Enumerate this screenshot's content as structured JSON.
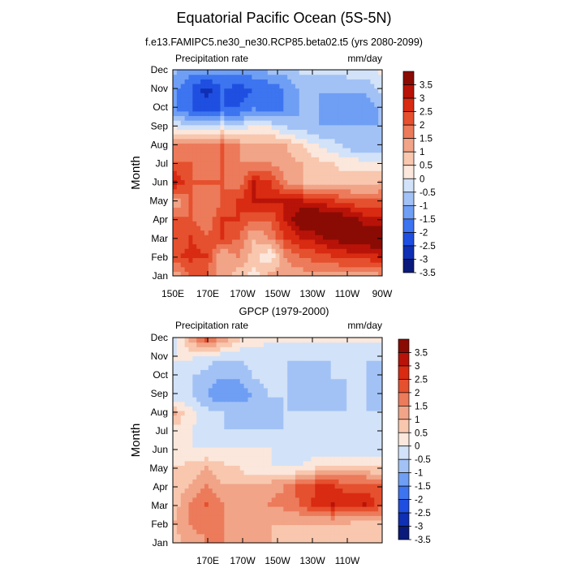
{
  "title": "Equatorial Pacific Ocean (5S-5N)",
  "palette": [
    "#0a1a7a",
    "#0f2fb4",
    "#1f4fe0",
    "#3d74f0",
    "#6f9ff4",
    "#a2c2f6",
    "#d2e2f8",
    "#fbe7dc",
    "#f8c7ae",
    "#f1a487",
    "#ec7b5b",
    "#e5502e",
    "#d92a12",
    "#b81308",
    "#8a0b04"
  ],
  "chart_data": [
    {
      "type": "heatmap",
      "subtitle": "f.e13.FAMIPC5.ne30_ne30.RCP85.beta02.t5 (yrs 2080-2099)",
      "left_label": "Precipitation rate",
      "right_label": "mm/day",
      "ylabel": "Month",
      "months": [
        "Jan",
        "Feb",
        "Mar",
        "Apr",
        "May",
        "Jun",
        "Jul",
        "Aug",
        "Sep",
        "Oct",
        "Nov",
        "Dec"
      ],
      "x_tick_labels": [
        "150E",
        "170E",
        "170W",
        "150W",
        "130W",
        "110W",
        "90W"
      ],
      "colorbar_labels": [
        "3.5",
        "3",
        "2.5",
        "2",
        "1.5",
        "1",
        "0.5",
        "0",
        "-0.5",
        "-1",
        "-1.5",
        "-2",
        "-2.5",
        "-3",
        "-3.5"
      ],
      "levels": [
        -3.5,
        -3,
        -2.5,
        -2,
        -1.5,
        -1,
        -0.5,
        0,
        0.5,
        1,
        1.5,
        2,
        2.5,
        3,
        3.5
      ],
      "grid": [
        [
          0.8,
          1.5,
          1.5,
          0.8,
          0.3,
          -0.2,
          0.5,
          0.8,
          0.8,
          0.9,
          0.9,
          0.9,
          0.9,
          1.0
        ],
        [
          1.8,
          2.2,
          2.0,
          0.5,
          1.0,
          0.3,
          -0.4,
          1.0,
          1.5,
          1.8,
          2.0,
          2.2,
          2.2,
          2.5
        ],
        [
          1.5,
          2.0,
          1.5,
          2.0,
          1.5,
          0.5,
          1.0,
          2.0,
          2.5,
          2.8,
          3.2,
          3.5,
          3.5,
          3.8
        ],
        [
          1.5,
          1.5,
          1.0,
          2.0,
          2.0,
          1.5,
          1.5,
          2.5,
          3.5,
          3.8,
          3.8,
          3.2,
          2.8,
          2.5
        ],
        [
          0.5,
          1.5,
          1.0,
          1.5,
          2.0,
          2.5,
          2.5,
          2.5,
          2.5,
          2.2,
          2.0,
          1.8,
          1.5,
          1.5
        ],
        [
          2.5,
          1.5,
          1.5,
          1.5,
          1.0,
          2.5,
          2.0,
          1.0,
          0.5,
          0.3,
          0.2,
          0.2,
          0.3,
          0.5
        ],
        [
          1.5,
          1.5,
          1.0,
          1.5,
          1.0,
          1.0,
          1.0,
          0.8,
          0.5,
          0.2,
          0.0,
          -0.2,
          -0.2,
          -0.3
        ],
        [
          1.0,
          1.2,
          1.0,
          1.5,
          1.0,
          0.5,
          0.8,
          0.5,
          0.0,
          -0.5,
          -0.8,
          -1.2,
          -1.5,
          -1.5
        ],
        [
          -0.5,
          -0.8,
          -1.0,
          -0.5,
          -0.8,
          -0.3,
          -0.5,
          -1.0,
          -1.2,
          -1.5,
          -1.5,
          -1.5,
          -1.5,
          -1.5
        ],
        [
          -2.0,
          -2.5,
          -2.8,
          -2.5,
          -2.5,
          -2.0,
          -2.5,
          -2.0,
          -1.5,
          -1.5,
          -1.8,
          -1.8,
          -1.8,
          -1.5
        ],
        [
          -2.0,
          -2.5,
          -3.2,
          -2.5,
          -2.8,
          -2.5,
          -2.5,
          -2.0,
          -1.5,
          -1.5,
          -1.5,
          -1.5,
          -1.5,
          -1.0
        ],
        [
          -1.5,
          -2.0,
          -2.0,
          -2.0,
          -2.0,
          -1.8,
          -1.5,
          -1.5,
          -1.0,
          -1.0,
          -1.0,
          -0.8,
          -0.8,
          -0.5
        ]
      ]
    },
    {
      "type": "heatmap",
      "subtitle": "GPCP (1979-2000)",
      "left_label": "Precipitation rate",
      "right_label": "mm/day",
      "ylabel": "Month",
      "months": [
        "Jan",
        "Feb",
        "Mar",
        "Apr",
        "May",
        "Jun",
        "Jul",
        "Aug",
        "Sep",
        "Oct",
        "Nov",
        "Dec"
      ],
      "x_tick_labels": [
        "170E",
        "170W",
        "150W",
        "130W",
        "110W"
      ],
      "colorbar_labels": [
        "3.5",
        "3",
        "2.5",
        "2",
        "1.5",
        "1",
        "0.5",
        "0",
        "-0.5",
        "-1",
        "-1.5",
        "-2",
        "-2.5",
        "-3",
        "-3.5"
      ],
      "levels": [
        -3.5,
        -3,
        -2.5,
        -2,
        -1.5,
        -1,
        -0.5,
        0,
        0.5,
        1,
        1.5,
        2,
        2.5,
        3,
        3.5
      ],
      "grid": [
        [
          0.3,
          0.8,
          1.0,
          1.0,
          0.8,
          0.5,
          0.5,
          0.3,
          0.3,
          0.3,
          0.3,
          0.3,
          0.2,
          0.2
        ],
        [
          0.5,
          1.0,
          1.2,
          1.0,
          0.8,
          0.5,
          0.5,
          0.5,
          0.5,
          0.5,
          0.5,
          0.5,
          0.3,
          0.2
        ],
        [
          0.3,
          1.0,
          1.5,
          1.0,
          0.8,
          0.8,
          1.0,
          1.2,
          1.5,
          2.2,
          2.5,
          2.2,
          2.5,
          1.8
        ],
        [
          0.2,
          0.5,
          1.0,
          0.5,
          0.5,
          0.5,
          0.8,
          1.0,
          1.8,
          2.0,
          2.0,
          1.8,
          1.8,
          1.5
        ],
        [
          0.0,
          0.2,
          0.5,
          0.2,
          0.0,
          -0.5,
          -0.5,
          -0.5,
          -0.5,
          0.0,
          0.2,
          0.2,
          0.2,
          0.0
        ],
        [
          -0.2,
          -0.5,
          -0.5,
          -0.5,
          -0.5,
          -0.5,
          -0.5,
          -0.8,
          -0.8,
          -0.8,
          -0.8,
          -0.8,
          -0.8,
          -0.8
        ],
        [
          -0.2,
          -0.5,
          -0.8,
          -1.0,
          -1.0,
          -1.0,
          -1.0,
          -1.0,
          -1.0,
          -1.0,
          -1.0,
          -1.0,
          -1.0,
          -1.0
        ],
        [
          0.5,
          -0.3,
          -0.8,
          -1.0,
          -1.2,
          -1.2,
          -1.2,
          -1.0,
          -1.0,
          -1.0,
          -1.0,
          -1.0,
          -1.0,
          -1.0
        ],
        [
          -1.0,
          -1.0,
          -1.5,
          -2.0,
          -1.8,
          -1.5,
          -1.0,
          -1.0,
          -1.2,
          -1.2,
          -1.2,
          -1.0,
          -1.0,
          -1.2
        ],
        [
          -0.8,
          -1.0,
          -1.2,
          -1.5,
          -1.5,
          -1.0,
          -0.8,
          -1.0,
          -1.2,
          -1.2,
          -1.0,
          -1.0,
          -1.0,
          -1.2
        ],
        [
          -0.5,
          -0.5,
          -0.8,
          -1.0,
          -1.0,
          -0.8,
          -0.8,
          -1.0,
          -1.0,
          -1.0,
          -1.0,
          -1.0,
          -1.0,
          -1.0
        ],
        [
          -0.8,
          0.5,
          1.5,
          0.8,
          0.0,
          -0.3,
          -0.5,
          -0.5,
          -0.5,
          -0.5,
          -0.5,
          -0.5,
          -0.5,
          -0.5
        ]
      ]
    }
  ]
}
